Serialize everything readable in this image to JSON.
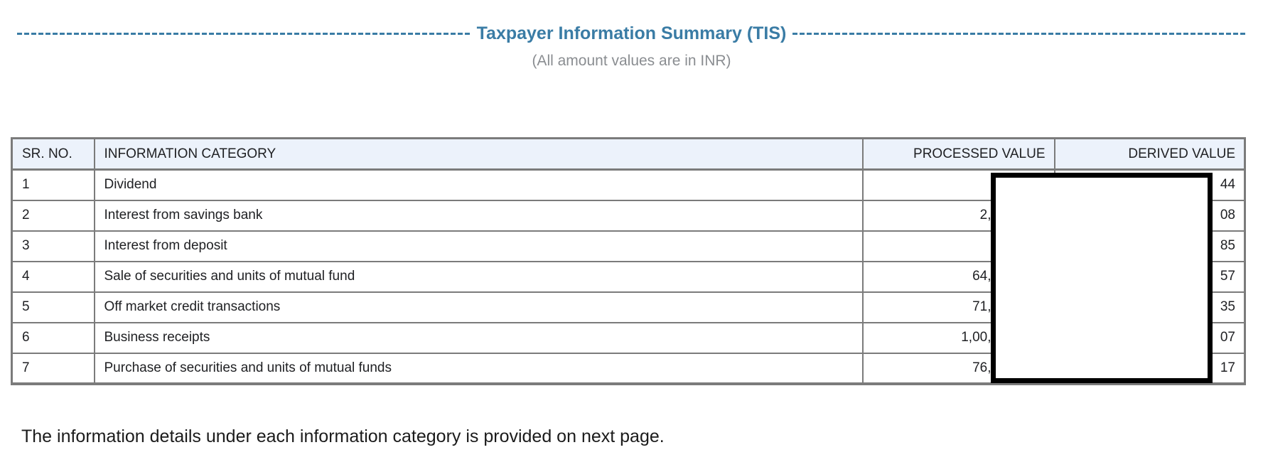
{
  "title": "Taxpayer Information Summary (TIS)",
  "subtitle": "(All amount values are in INR)",
  "colors": {
    "accent_blue": "#3A7CA5",
    "header_background": "#ECF2FB",
    "table_border": "#7B7B7B",
    "redaction_border": "#000000"
  },
  "table": {
    "headers": [
      "SR. NO.",
      "INFORMATION CATEGORY",
      "PROCESSED VALUE",
      "DERIVED VALUE"
    ],
    "rows": [
      {
        "sr": "1",
        "category": "Dividend",
        "processed_visible": "",
        "derived_visible": "44"
      },
      {
        "sr": "2",
        "category": "Interest from savings bank",
        "processed_visible": "2,",
        "derived_visible": "08"
      },
      {
        "sr": "3",
        "category": "Interest from deposit",
        "processed_visible": "",
        "derived_visible": "85"
      },
      {
        "sr": "4",
        "category": "Sale of securities and units of mutual fund",
        "processed_visible": "64,",
        "derived_visible": "57"
      },
      {
        "sr": "5",
        "category": "Off market credit transactions",
        "processed_visible": "71,",
        "derived_visible": "35"
      },
      {
        "sr": "6",
        "category": "Business receipts",
        "processed_visible": "1,00,",
        "derived_visible": "07"
      },
      {
        "sr": "7",
        "category": "Purchase of securities and units of mutual funds",
        "processed_visible": "76,",
        "derived_visible": "17"
      }
    ]
  },
  "footer_note": "The information details under each information category is provided on next page."
}
